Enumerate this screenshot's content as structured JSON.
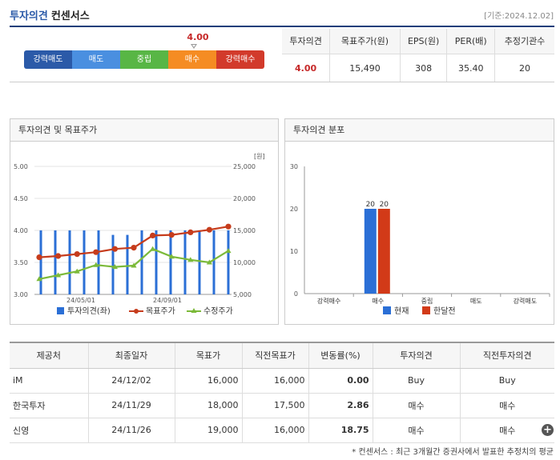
{
  "header": {
    "title": "투자의견",
    "subtitle": "컨센서스",
    "date": "[기준:2024.12.02]"
  },
  "consensus": {
    "marker_value": "4.00",
    "segments": [
      "강력매도",
      "매도",
      "중립",
      "매수",
      "강력매수"
    ],
    "columns": [
      "투자의견",
      "목표주가(원)",
      "EPS(원)",
      "PER(배)",
      "추정기관수"
    ],
    "values": [
      "4.00",
      "15,490",
      "308",
      "35.40",
      "20"
    ]
  },
  "panel_left": {
    "title": "투자의견 및 목표주가",
    "unit": "[원]",
    "legend": [
      "투자의견(좌)",
      "목표주가",
      "수정주가"
    ]
  },
  "panel_right": {
    "title": "투자의견 분포",
    "legend": [
      "현재",
      "한달전"
    ]
  },
  "chart_data": [
    {
      "type": "bar+line",
      "title": "투자의견 및 목표주가",
      "y_left": {
        "ticks": [
          "5.00",
          "4.50",
          "4.00",
          "3.50",
          "3.00"
        ],
        "range": [
          3.0,
          5.0
        ]
      },
      "y_right": {
        "label": "[원]",
        "ticks": [
          "25,000",
          "20,000",
          "15,000",
          "10,000",
          "5,000"
        ],
        "range": [
          5000,
          25000
        ]
      },
      "x_ticks": [
        "24/05/01",
        "24/09/01"
      ],
      "series": [
        {
          "name": "투자의견(좌)",
          "type": "bar",
          "color": "#2b6fd6",
          "values": [
            4.0,
            4.0,
            4.0,
            4.0,
            4.0,
            3.93,
            3.93,
            4.0,
            4.0,
            4.0,
            4.0,
            4.0,
            4.0,
            4.0
          ]
        },
        {
          "name": "목표주가",
          "type": "line",
          "color": "#c63c1c",
          "values": [
            10800,
            11000,
            11300,
            11600,
            12100,
            12300,
            14200,
            14300,
            14700,
            15100,
            15600
          ]
        },
        {
          "name": "수정주가",
          "type": "line",
          "color": "#7cba3a",
          "values": [
            7400,
            8000,
            8600,
            9600,
            9300,
            9500,
            12100,
            10900,
            10400,
            10000,
            11800
          ]
        }
      ]
    },
    {
      "type": "bar",
      "title": "투자의견 분포",
      "categories": [
        "강력매수",
        "매수",
        "중립",
        "매도",
        "강력매도"
      ],
      "ylim": [
        0,
        30
      ],
      "y_ticks": [
        "30",
        "20",
        "10",
        "0"
      ],
      "series": [
        {
          "name": "현재",
          "color": "#2b6fd6",
          "values": [
            0,
            20,
            0,
            0,
            0
          ]
        },
        {
          "name": "한달전",
          "color": "#d23a18",
          "values": [
            0,
            20,
            0,
            0,
            0
          ]
        }
      ]
    }
  ],
  "table": {
    "headers": [
      "제공처",
      "최종일자",
      "목표가",
      "직전목표가",
      "변동률(%)",
      "투자의견",
      "직전투자의견"
    ],
    "rows": [
      [
        "iM",
        "24/12/02",
        "16,000",
        "16,000",
        "0.00",
        "Buy",
        "Buy"
      ],
      [
        "한국투자",
        "24/11/29",
        "18,000",
        "17,500",
        "2.86",
        "매수",
        "매수"
      ],
      [
        "신영",
        "24/11/26",
        "19,000",
        "16,000",
        "18.75",
        "매수",
        "매수"
      ]
    ]
  },
  "footnote": "* 컨센서스 : 최근 3개월간 증권사에서 발표한 추정치의 평균"
}
